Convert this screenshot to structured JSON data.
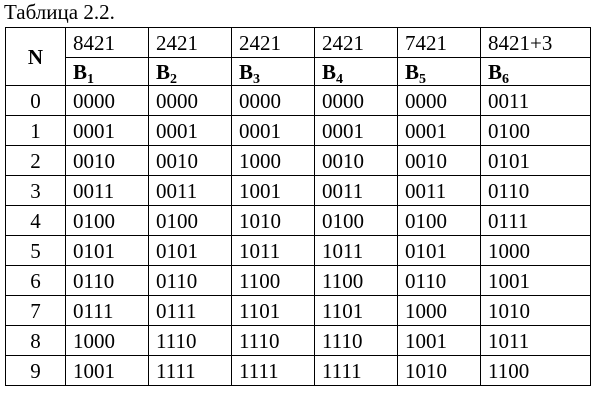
{
  "caption": "Таблица 2.2.",
  "table": {
    "n_header": "N",
    "weights": [
      "8421",
      "2421",
      "2421",
      "2421",
      "7421",
      "8421+3"
    ],
    "codes": [
      {
        "letter": "B",
        "sub": "1"
      },
      {
        "letter": "B",
        "sub": "2"
      },
      {
        "letter": "B",
        "sub": "3"
      },
      {
        "letter": "B",
        "sub": "4"
      },
      {
        "letter": "B",
        "sub": "5"
      },
      {
        "letter": "B",
        "sub": "6"
      }
    ],
    "rows": [
      {
        "n": "0",
        "cells": [
          "0000",
          "0000",
          "0000",
          "0000",
          "0000",
          "0011"
        ]
      },
      {
        "n": "1",
        "cells": [
          "0001",
          "0001",
          "0001",
          "0001",
          "0001",
          "0100"
        ]
      },
      {
        "n": "2",
        "cells": [
          "0010",
          "0010",
          "1000",
          "0010",
          "0010",
          "0101"
        ]
      },
      {
        "n": "3",
        "cells": [
          "0011",
          "0011",
          "1001",
          "0011",
          "0011",
          "0110"
        ]
      },
      {
        "n": "4",
        "cells": [
          "0100",
          "0100",
          "1010",
          "0100",
          "0100",
          "0111"
        ]
      },
      {
        "n": "5",
        "cells": [
          "0101",
          "0101",
          "1011",
          "1011",
          "0101",
          "1000"
        ]
      },
      {
        "n": "6",
        "cells": [
          "0110",
          "0110",
          "1100",
          "1100",
          "0110",
          "1001"
        ]
      },
      {
        "n": "7",
        "cells": [
          "0111",
          "0111",
          "1101",
          "1101",
          "1000",
          "1010"
        ]
      },
      {
        "n": "8",
        "cells": [
          "1000",
          "1110",
          "1110",
          "1110",
          "1001",
          "1011"
        ]
      },
      {
        "n": "9",
        "cells": [
          "1001",
          "1111",
          "1111",
          "1111",
          "1010",
          "1100"
        ]
      }
    ]
  }
}
